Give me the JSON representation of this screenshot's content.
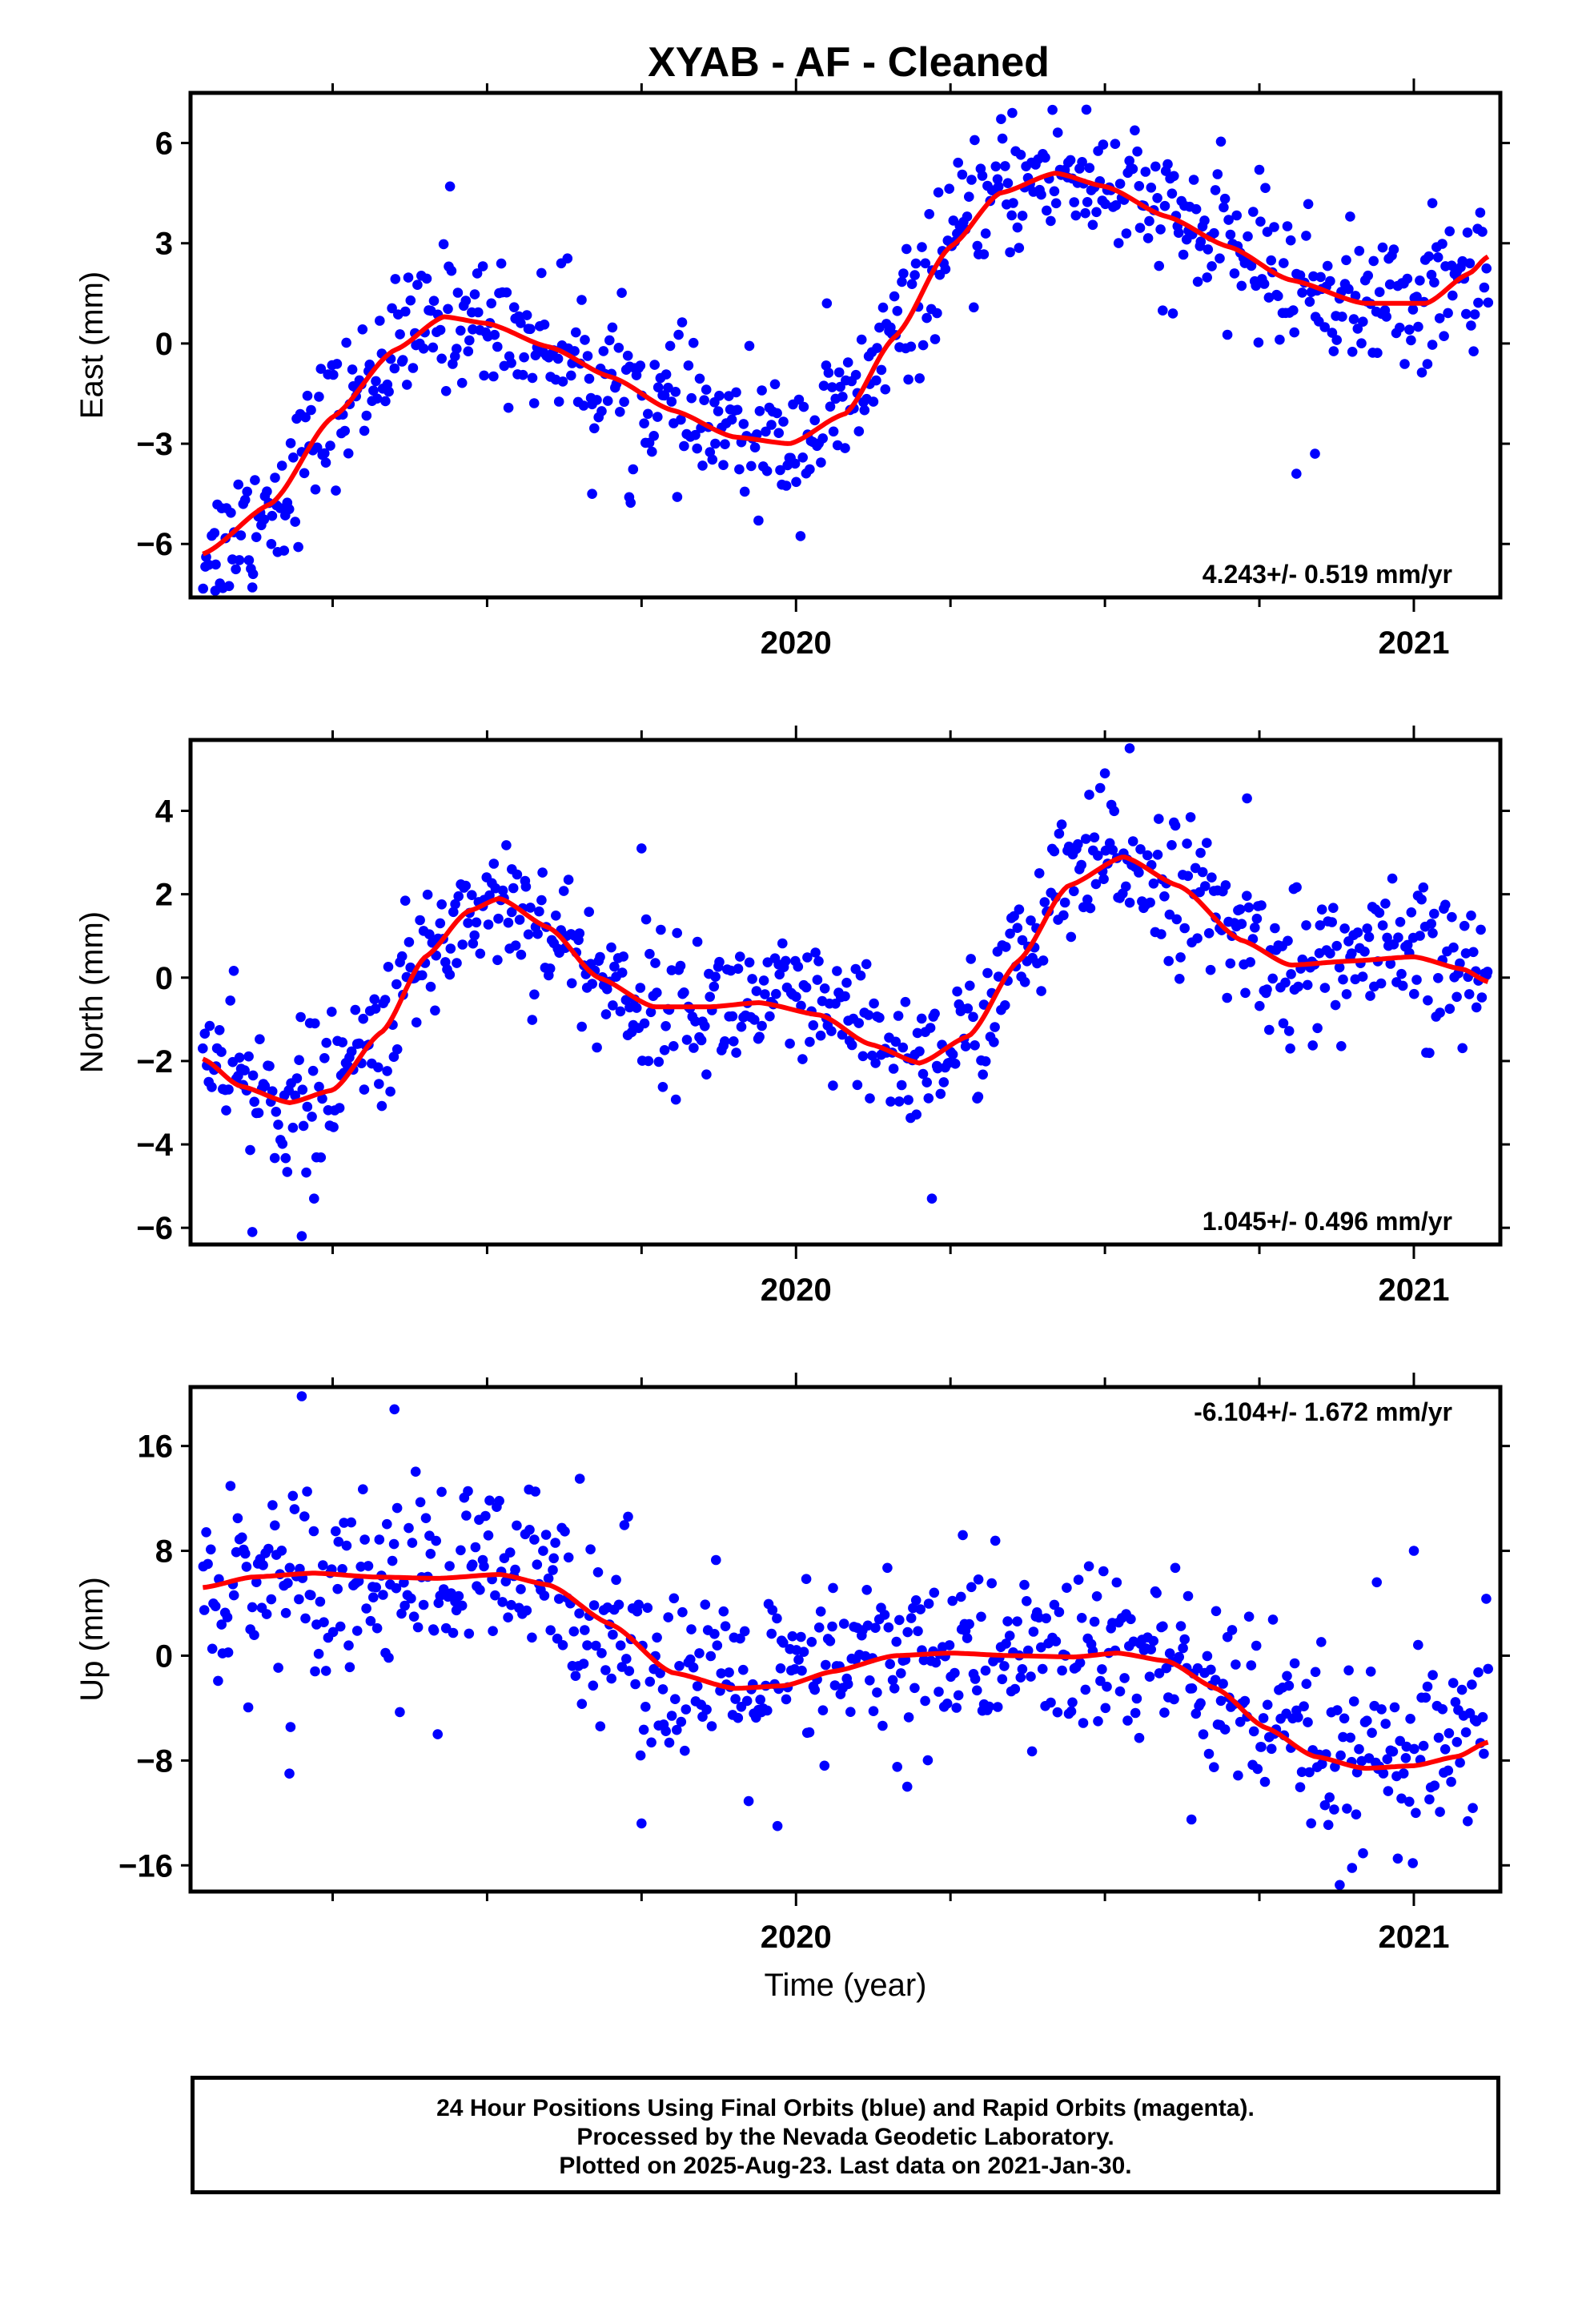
{
  "title": "XYAB  - AF - Cleaned",
  "colors": {
    "data": "#0000ff",
    "model": "#ff0000",
    "frame": "#000000"
  },
  "footer": {
    "line1": "24 Hour Positions Using Final Orbits (blue) and Rapid Orbits (magenta).",
    "line2": "Processed by the Nevada Geodetic Laboratory.",
    "line3": "Plotted on 2025-Aug-23. Last data on 2021-Jan-30."
  },
  "chart_data": [
    {
      "type": "scatter",
      "ylabel": "East (mm)",
      "xlabel": "",
      "xlim": [
        2019.02,
        2021.14
      ],
      "ylim": [
        -7.6,
        7.5
      ],
      "yticks": [
        -6,
        -3,
        0,
        3,
        6
      ],
      "xticks": [
        2020,
        2021
      ],
      "rate": "4.243+/- 0.519 mm/yr",
      "rate_position": "bottom-right",
      "fit_knots": [
        [
          2019.04,
          -6.3
        ],
        [
          2019.15,
          -4.8
        ],
        [
          2019.25,
          -2.2
        ],
        [
          2019.35,
          -0.2
        ],
        [
          2019.43,
          0.8
        ],
        [
          2019.5,
          0.6
        ],
        [
          2019.6,
          -0.1
        ],
        [
          2019.7,
          -1.0
        ],
        [
          2019.8,
          -2.0
        ],
        [
          2019.9,
          -2.8
        ],
        [
          2019.99,
          -3.0
        ],
        [
          2020.08,
          -2.1
        ],
        [
          2020.16,
          0.2
        ],
        [
          2020.25,
          2.9
        ],
        [
          2020.33,
          4.5
        ],
        [
          2020.42,
          5.1
        ],
        [
          2020.5,
          4.7
        ],
        [
          2020.6,
          3.8
        ],
        [
          2020.7,
          2.9
        ],
        [
          2020.8,
          1.9
        ],
        [
          2020.92,
          1.2
        ],
        [
          2021.02,
          1.2
        ],
        [
          2021.09,
          2.1
        ],
        [
          2021.12,
          2.6
        ]
      ],
      "scatter_sd": 1.0,
      "outliers": [
        [
          2019.06,
          -7.4
        ],
        [
          2019.12,
          -7.3
        ],
        [
          2019.44,
          4.7
        ],
        [
          2019.62,
          2.4
        ],
        [
          2019.67,
          -4.5
        ],
        [
          2019.73,
          -4.6
        ],
        [
          2020.05,
          1.2
        ],
        [
          2020.35,
          6.9
        ],
        [
          2020.47,
          7.0
        ],
        [
          2020.61,
          0.9
        ],
        [
          2020.75,
          5.2
        ],
        [
          2020.81,
          -3.9
        ],
        [
          2020.84,
          -3.3
        ],
        [
          2021.03,
          4.2
        ]
      ]
    },
    {
      "type": "scatter",
      "ylabel": "North (mm)",
      "xlabel": "",
      "xlim": [
        2019.02,
        2021.14
      ],
      "ylim": [
        -6.4,
        5.7
      ],
      "yticks": [
        -6,
        -4,
        -2,
        0,
        2,
        4
      ],
      "xticks": [
        2020,
        2021
      ],
      "rate": "1.045+/- 0.496 mm/yr",
      "rate_position": "bottom-right",
      "fit_knots": [
        [
          2019.04,
          -1.95
        ],
        [
          2019.1,
          -2.6
        ],
        [
          2019.18,
          -3.0
        ],
        [
          2019.25,
          -2.7
        ],
        [
          2019.33,
          -1.3
        ],
        [
          2019.4,
          0.5
        ],
        [
          2019.47,
          1.6
        ],
        [
          2019.52,
          1.9
        ],
        [
          2019.6,
          1.2
        ],
        [
          2019.68,
          0.0
        ],
        [
          2019.77,
          -0.7
        ],
        [
          2019.86,
          -0.7
        ],
        [
          2019.94,
          -0.6
        ],
        [
          2020.04,
          -0.9
        ],
        [
          2020.12,
          -1.6
        ],
        [
          2020.2,
          -2.05
        ],
        [
          2020.28,
          -1.4
        ],
        [
          2020.36,
          0.4
        ],
        [
          2020.44,
          2.2
        ],
        [
          2020.53,
          2.9
        ],
        [
          2020.62,
          2.2
        ],
        [
          2020.72,
          0.9
        ],
        [
          2020.8,
          0.3
        ],
        [
          2020.9,
          0.4
        ],
        [
          2021.0,
          0.5
        ],
        [
          2021.08,
          0.2
        ],
        [
          2021.12,
          -0.1
        ]
      ],
      "scatter_sd": 0.85,
      "outliers": [
        [
          2019.12,
          -6.1
        ],
        [
          2019.2,
          -6.2
        ],
        [
          2019.22,
          -5.3
        ],
        [
          2019.54,
          2.6
        ],
        [
          2019.75,
          3.1
        ],
        [
          2020.22,
          -5.3
        ],
        [
          2020.5,
          4.9
        ],
        [
          2020.54,
          5.5
        ],
        [
          2020.73,
          4.3
        ],
        [
          2020.8,
          -1.7
        ],
        [
          2021.02,
          -1.8
        ]
      ]
    },
    {
      "type": "scatter",
      "ylabel": "Up (mm)",
      "xlabel": "Time (year)",
      "xlim": [
        2019.02,
        2021.14
      ],
      "ylim": [
        -18,
        20.5
      ],
      "yticks": [
        -16,
        -8,
        0,
        8,
        16
      ],
      "xticks": [
        2020,
        2021
      ],
      "rate": "-6.104+/- 1.672 mm/yr",
      "rate_position": "top-right",
      "fit_knots": [
        [
          2019.04,
          5.2
        ],
        [
          2019.12,
          6.0
        ],
        [
          2019.22,
          6.3
        ],
        [
          2019.32,
          6.0
        ],
        [
          2019.42,
          5.9
        ],
        [
          2019.52,
          6.2
        ],
        [
          2019.6,
          5.4
        ],
        [
          2019.7,
          2.4
        ],
        [
          2019.8,
          -1.3
        ],
        [
          2019.9,
          -2.5
        ],
        [
          2019.98,
          -2.3
        ],
        [
          2020.06,
          -1.2
        ],
        [
          2020.16,
          0.0
        ],
        [
          2020.25,
          0.2
        ],
        [
          2020.35,
          0.0
        ],
        [
          2020.45,
          -0.1
        ],
        [
          2020.52,
          0.2
        ],
        [
          2020.6,
          -0.4
        ],
        [
          2020.68,
          -2.5
        ],
        [
          2020.76,
          -5.5
        ],
        [
          2020.84,
          -7.7
        ],
        [
          2020.92,
          -8.6
        ],
        [
          2021.0,
          -8.4
        ],
        [
          2021.07,
          -7.7
        ],
        [
          2021.12,
          -6.6
        ]
      ],
      "scatter_sd": 3.5,
      "outliers": [
        [
          2019.18,
          -9.0
        ],
        [
          2019.2,
          19.8
        ],
        [
          2019.35,
          18.8
        ],
        [
          2019.42,
          -6.0
        ],
        [
          2019.65,
          13.5
        ],
        [
          2019.75,
          -12.8
        ],
        [
          2019.97,
          -13.0
        ],
        [
          2020.18,
          -10.0
        ],
        [
          2020.27,
          9.2
        ],
        [
          2020.64,
          -12.5
        ],
        [
          2020.68,
          3.4
        ],
        [
          2020.88,
          -17.5
        ],
        [
          2020.9,
          -16.2
        ],
        [
          2020.94,
          5.6
        ],
        [
          2021.0,
          8.0
        ]
      ]
    }
  ]
}
